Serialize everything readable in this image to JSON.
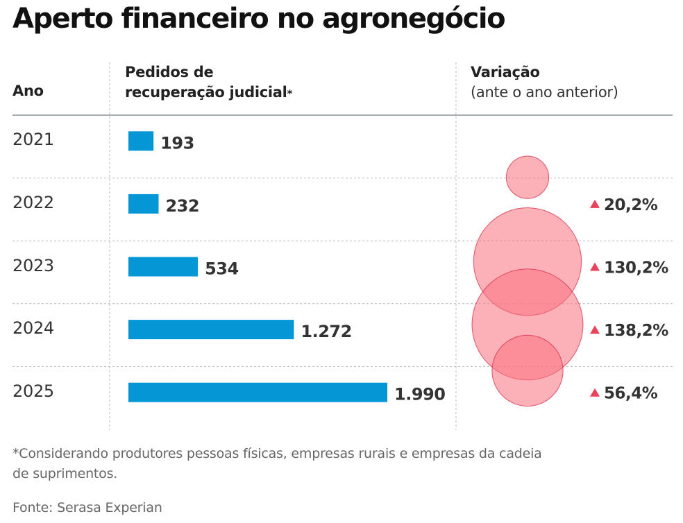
{
  "title": "Aperto financeiro no agronegócio",
  "headers": {
    "year": "Ano",
    "requests_line1": "Pedidos de",
    "requests_line2": "recuperação judicial",
    "requests_asterisk": "*",
    "variation": "Variação",
    "variation_sub": "(ante o ano anterior)"
  },
  "colors": {
    "bar": "#0596d6",
    "bubble_fill": "#f9717f",
    "bubble_stroke": "#d9304a",
    "triangle": "#e8435a",
    "grid": "#b8b8b8",
    "header_rule": "#8a9296"
  },
  "chart_data": {
    "type": "bar",
    "title": "Aperto financeiro no agronegócio",
    "categories": [
      "2021",
      "2022",
      "2023",
      "2024",
      "2025"
    ],
    "series": [
      {
        "name": "Pedidos de recuperação judicial",
        "values": [
          193,
          232,
          534,
          1272,
          1990
        ],
        "labels": [
          "193",
          "232",
          "534",
          "1.272",
          "1.990"
        ]
      },
      {
        "name": "Variação (ante o ano anterior)",
        "type": "bubble",
        "values": [
          null,
          20.2,
          130.2,
          138.2,
          56.4
        ],
        "labels": [
          "",
          "20,2%",
          "130,2%",
          "138,2%",
          "56,4%"
        ],
        "direction": [
          null,
          "up",
          "up",
          "up",
          "up"
        ]
      }
    ],
    "xlabel": "",
    "ylabel": "",
    "grid": true
  },
  "footnote_line1": "*Considerando produtores pessoas físicas, empresas rurais e empresas da cadeia",
  "footnote_line2": "de suprimentos.",
  "source": "Fonte: Serasa Experian"
}
